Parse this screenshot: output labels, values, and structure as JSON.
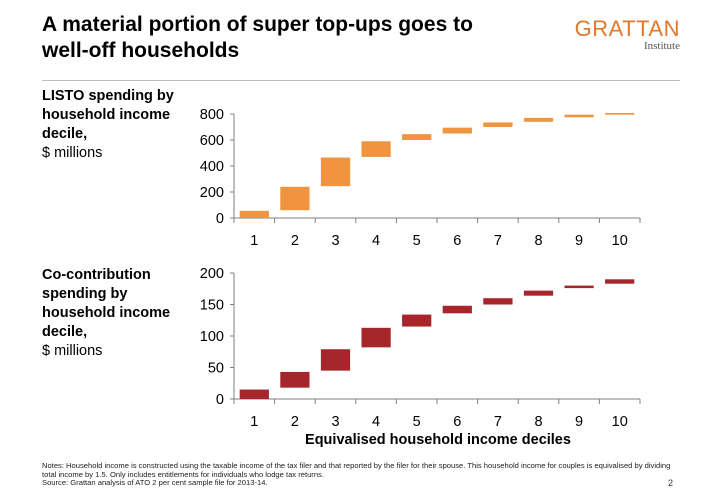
{
  "slide": {
    "title": "A material portion of super top-ups goes to well-off households",
    "logo": {
      "main": "GRATTAN",
      "sub": "Institute"
    },
    "x_axis_title": "Equivalised household income deciles",
    "notes": [
      "Notes: Household income is constructed using the taxable income of the tax filer and that reported by the filer for their spouse. This household income for couples is equivalised by dividing total income by 1.5.  Only includes entitlements for individuals who lodge tax returns.",
      "Source: Grattan analysis of ATO 2 per cent sample file for 2013-14."
    ],
    "page_number": "2"
  },
  "colors": {
    "listo": "#f0953e",
    "cocontribution": "#a6262c",
    "accent": "#e3782b"
  },
  "chart_data": [
    {
      "type": "waterfall",
      "label": {
        "bold": "LISTO spending by household income decile,",
        "unit": "$ millions"
      },
      "categories": [
        "1",
        "2",
        "3",
        "4",
        "5",
        "6",
        "7",
        "8",
        "9",
        "10"
      ],
      "start": [
        0,
        60,
        245,
        470,
        600,
        650,
        700,
        740,
        775,
        795
      ],
      "end": [
        55,
        240,
        465,
        590,
        645,
        695,
        735,
        770,
        795,
        808
      ],
      "ylim": [
        0,
        800
      ],
      "yticks": [
        "0",
        "200",
        "400",
        "600",
        "800"
      ],
      "ytick_values": [
        0,
        200,
        400,
        600,
        800
      ],
      "color": "#f0953e"
    },
    {
      "type": "waterfall",
      "label": {
        "bold": "Co-contribution spending by household income decile,",
        "unit": "$ millions"
      },
      "categories": [
        "1",
        "2",
        "3",
        "4",
        "5",
        "6",
        "7",
        "8",
        "9",
        "10"
      ],
      "start": [
        0,
        18,
        45,
        82,
        115,
        136,
        150,
        164,
        176,
        183
      ],
      "end": [
        15,
        43,
        79,
        113,
        134,
        148,
        160,
        172,
        180,
        190
      ],
      "ylim": [
        0,
        200
      ],
      "yticks": [
        "0",
        "50",
        "100",
        "150",
        "200"
      ],
      "ytick_values": [
        0,
        50,
        100,
        150,
        200
      ],
      "color": "#a6262c"
    }
  ]
}
